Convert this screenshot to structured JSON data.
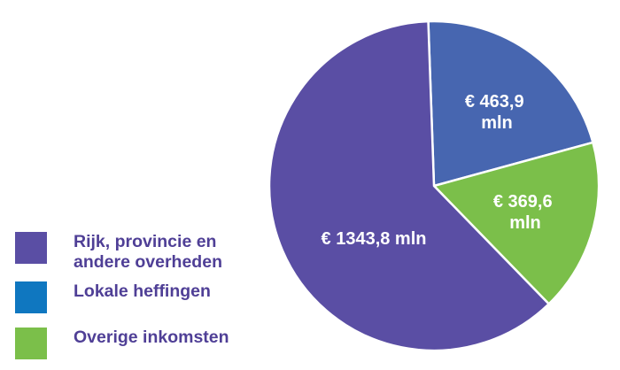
{
  "chart_data": {
    "type": "pie",
    "slices": [
      {
        "label": "Rijk, provincie en andere overheden",
        "value": 1343.8,
        "value_label": "€ 1343,8 mln",
        "color": "#5a4ea4"
      },
      {
        "label": "Lokale heffingen",
        "value": 463.9,
        "value_label_lines": [
          "€ 463,9",
          "mln"
        ],
        "color": "#4766b0"
      },
      {
        "label": "Overige inkomsten",
        "value": 369.6,
        "value_label_lines": [
          "€ 369,6",
          "mln"
        ],
        "color": "#7bbf4a"
      }
    ],
    "legend": {
      "position": "bottom-left",
      "items": [
        {
          "label_lines": [
            "Rijk, provincie en",
            "andere overheden"
          ],
          "color": "#5a4ea4"
        },
        {
          "label_lines": [
            "Lokale heffingen"
          ],
          "color": "#0f77c0"
        },
        {
          "label_lines": [
            "Overige inkomsten"
          ],
          "color": "#7bbf4a"
        }
      ]
    }
  }
}
